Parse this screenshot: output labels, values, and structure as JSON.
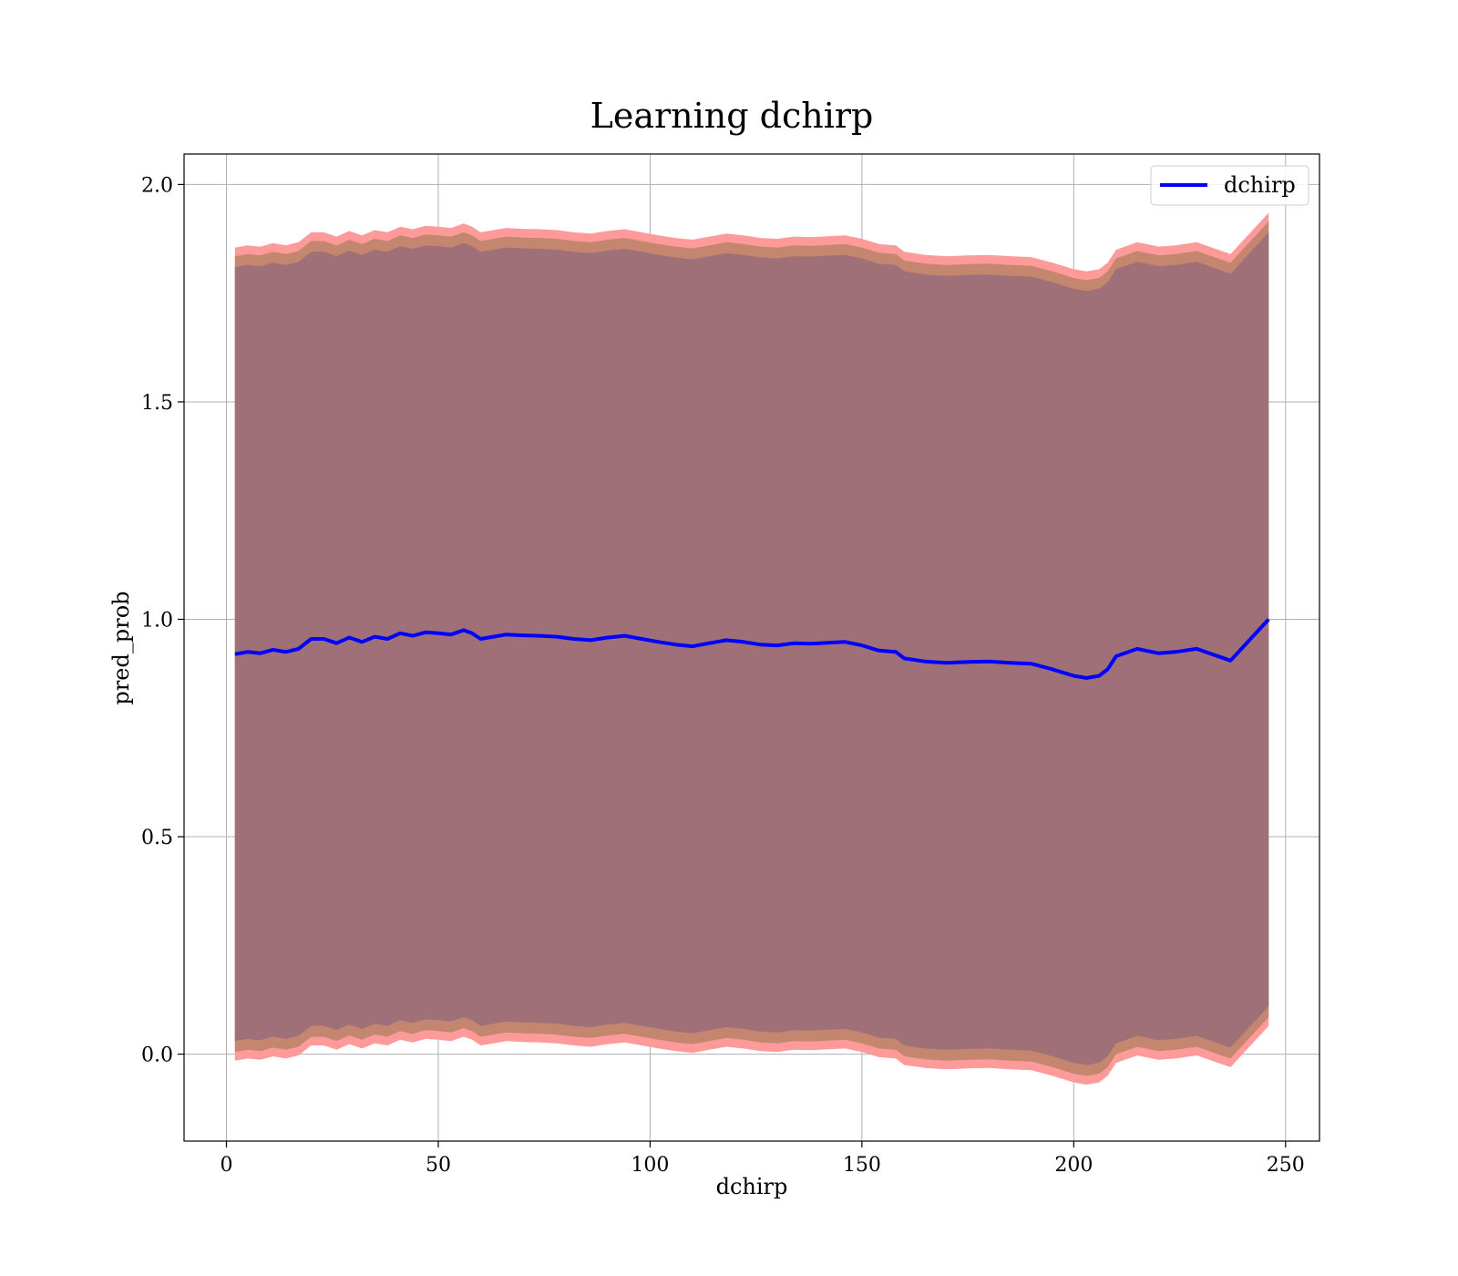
{
  "chart_data": {
    "type": "line",
    "title": "Learning dchirp",
    "xlabel": "dchirp",
    "ylabel": "pred_prob",
    "xlim": [
      -10,
      258
    ],
    "ylim": [
      -0.2,
      2.07
    ],
    "xticks": [
      0,
      50,
      100,
      150,
      200,
      250
    ],
    "yticks": [
      0.0,
      0.5,
      1.0,
      1.5,
      2.0
    ],
    "xtick_labels": [
      "0",
      "50",
      "100",
      "150",
      "200",
      "250"
    ],
    "ytick_labels": [
      "0.0",
      "0.5",
      "1.0",
      "1.5",
      "2.0"
    ],
    "grid": true,
    "legend": {
      "position": "top-right",
      "entries": [
        "dchirp"
      ]
    },
    "colors": {
      "line": "#0000ff",
      "band_outer": "#ff9a9a",
      "band_middle": "#c4866e",
      "band_inner": "#a07078",
      "grid": "#b0b0b0"
    },
    "series": [
      {
        "name": "dchirp",
        "x": [
          2,
          5,
          8,
          11,
          14,
          17,
          20,
          23,
          26,
          29,
          32,
          35,
          38,
          41,
          44,
          47,
          50,
          53,
          56,
          58,
          60,
          63,
          66,
          70,
          74,
          78,
          82,
          86,
          90,
          94,
          98,
          102,
          106,
          110,
          114,
          118,
          122,
          126,
          130,
          134,
          138,
          142,
          146,
          150,
          154,
          158,
          160,
          165,
          170,
          175,
          180,
          185,
          190,
          195,
          200,
          203,
          206,
          208,
          210,
          215,
          220,
          224,
          229,
          237,
          246
        ],
        "y": [
          0.92,
          0.925,
          0.922,
          0.93,
          0.925,
          0.932,
          0.955,
          0.955,
          0.945,
          0.958,
          0.948,
          0.96,
          0.955,
          0.968,
          0.962,
          0.97,
          0.968,
          0.965,
          0.975,
          0.968,
          0.955,
          0.96,
          0.965,
          0.963,
          0.962,
          0.96,
          0.955,
          0.952,
          0.958,
          0.962,
          0.955,
          0.948,
          0.942,
          0.938,
          0.945,
          0.952,
          0.948,
          0.942,
          0.94,
          0.945,
          0.944,
          0.946,
          0.948,
          0.94,
          0.928,
          0.925,
          0.91,
          0.903,
          0.9,
          0.902,
          0.903,
          0.9,
          0.898,
          0.885,
          0.87,
          0.865,
          0.87,
          0.885,
          0.915,
          0.932,
          0.922,
          0.925,
          0.932,
          0.905,
          1.0
        ],
        "bands": [
          {
            "level": "outer",
            "half_width": 0.935
          },
          {
            "level": "middle",
            "half_width": 0.915
          },
          {
            "level": "inner",
            "half_width": 0.89
          }
        ]
      }
    ]
  }
}
